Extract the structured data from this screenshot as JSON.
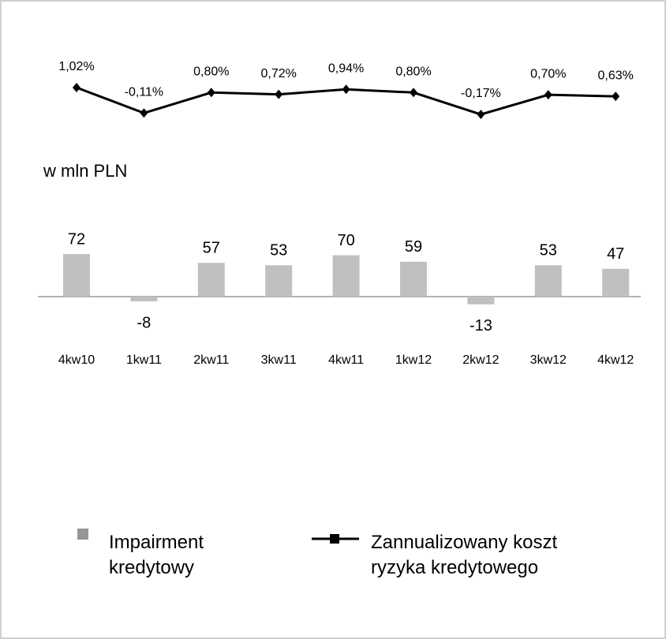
{
  "chart_data": {
    "type": "combo",
    "label": "w mln PLN",
    "categories": [
      "4kw10",
      "1kw11",
      "2kw11",
      "3kw11",
      "4kw11",
      "1kw12",
      "2kw12",
      "3kw12",
      "4kw12"
    ],
    "series": [
      {
        "name": "Impairment kredytowy",
        "type": "bar",
        "color": "#c0c0c0",
        "values": [
          72,
          -8,
          57,
          53,
          70,
          59,
          -13,
          53,
          47
        ]
      },
      {
        "name": "Zannualizowany koszt ryzyka kredytowego",
        "type": "line",
        "color": "#000000",
        "values": [
          1.02,
          -0.11,
          0.8,
          0.72,
          0.94,
          0.8,
          -0.17,
          0.7,
          0.63
        ],
        "value_labels": [
          "1,02%",
          "-0,11%",
          "0,80%",
          "0,72%",
          "0,94%",
          "0,80%",
          "-0,17%",
          "0,70%",
          "0,63%"
        ]
      }
    ]
  }
}
